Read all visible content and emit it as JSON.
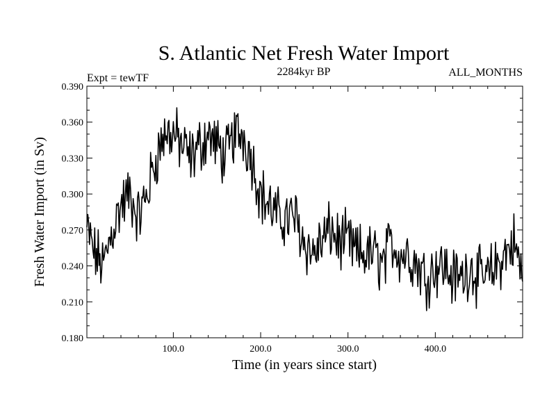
{
  "chart_data": {
    "type": "line",
    "title": "S. Atlantic Net Fresh Water Import",
    "subtitle_left": "Expt = tewTF",
    "subtitle_center": "2284kyr BP",
    "subtitle_right": "ALL_MONTHS",
    "xlabel": "Time (in years since start)",
    "ylabel": "Fresh Water Import (in Sv)",
    "xlim": [
      1,
      500
    ],
    "ylim": [
      0.18,
      0.39
    ],
    "x_ticks": [
      100,
      200,
      300,
      400
    ],
    "x_tick_labels": [
      "100.0",
      "200.0",
      "300.0",
      "400.0"
    ],
    "y_ticks": [
      0.18,
      0.21,
      0.24,
      0.27,
      0.3,
      0.33,
      0.36,
      0.39
    ],
    "y_tick_labels": [
      "0.180",
      "0.210",
      "0.240",
      "0.270",
      "0.300",
      "0.330",
      "0.360",
      "0.390"
    ],
    "series": [
      {
        "name": "Fresh Water Import",
        "x": [
          1,
          10,
          20,
          30,
          40,
          50,
          60,
          70,
          80,
          90,
          100,
          110,
          120,
          130,
          140,
          150,
          160,
          170,
          180,
          190,
          200,
          210,
          220,
          230,
          240,
          250,
          260,
          270,
          280,
          290,
          300,
          310,
          320,
          330,
          340,
          350,
          360,
          370,
          380,
          390,
          400,
          410,
          420,
          430,
          440,
          450,
          460,
          470,
          480,
          490,
          500
        ],
        "values": [
          0.27,
          0.25,
          0.24,
          0.27,
          0.29,
          0.3,
          0.28,
          0.3,
          0.33,
          0.35,
          0.35,
          0.34,
          0.33,
          0.34,
          0.35,
          0.34,
          0.33,
          0.35,
          0.35,
          0.33,
          0.3,
          0.29,
          0.28,
          0.28,
          0.28,
          0.26,
          0.25,
          0.26,
          0.27,
          0.26,
          0.26,
          0.25,
          0.25,
          0.25,
          0.24,
          0.26,
          0.25,
          0.25,
          0.24,
          0.23,
          0.24,
          0.24,
          0.23,
          0.23,
          0.24,
          0.23,
          0.23,
          0.24,
          0.25,
          0.26,
          0.23
        ]
      }
    ]
  }
}
